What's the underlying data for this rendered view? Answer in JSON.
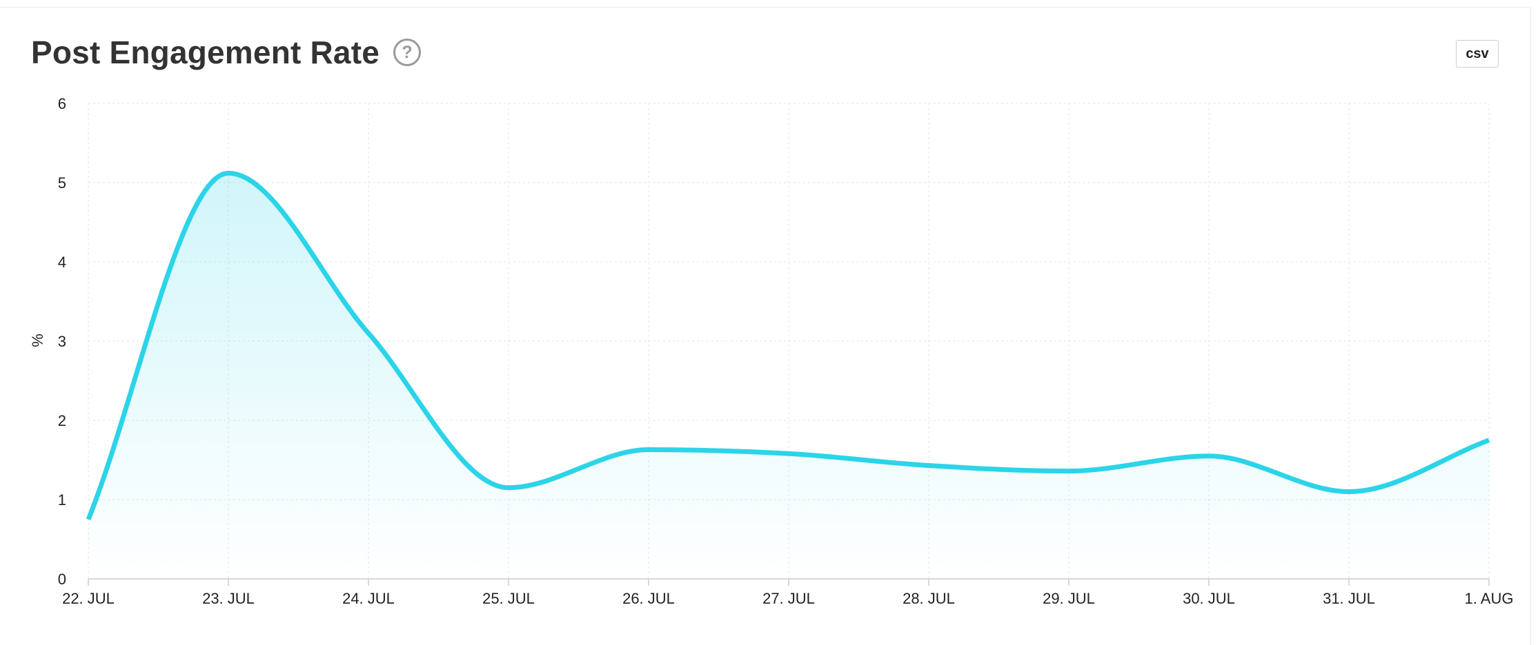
{
  "header": {
    "title": "Post Engagement Rate",
    "help_icon": "question-circle-icon",
    "csv_label": "csv"
  },
  "chart_data": {
    "type": "area",
    "title": "Post Engagement Rate",
    "xlabel": "",
    "ylabel": "%",
    "ylim": [
      0,
      6
    ],
    "yticks": [
      "0",
      "1",
      "2",
      "3",
      "4",
      "5",
      "6"
    ],
    "categories": [
      "22. JUL",
      "23. JUL",
      "24. JUL",
      "25. JUL",
      "26. JUL",
      "27. JUL",
      "28. JUL",
      "29. JUL",
      "30. JUL",
      "31. JUL",
      "1. AUG"
    ],
    "series": [
      {
        "values": [
          0.75,
          5.12,
          3.1,
          1.15,
          1.63,
          1.58,
          1.43,
          1.36,
          1.55,
          1.1,
          1.75
        ],
        "color": "#2bd4e8"
      }
    ],
    "grid": true,
    "legend": "none"
  }
}
